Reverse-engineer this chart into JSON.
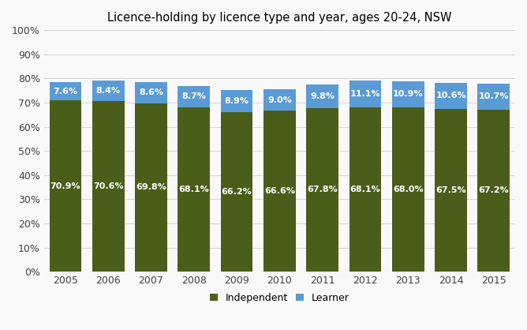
{
  "title": "Licence-holding by licence type and year, ages 20-24, NSW",
  "years": [
    2005,
    2006,
    2007,
    2008,
    2009,
    2010,
    2011,
    2012,
    2013,
    2014,
    2015
  ],
  "independent": [
    70.9,
    70.6,
    69.8,
    68.1,
    66.2,
    66.6,
    67.8,
    68.1,
    68.0,
    67.5,
    67.2
  ],
  "learner": [
    7.6,
    8.4,
    8.6,
    8.7,
    8.9,
    9.0,
    9.8,
    11.1,
    10.9,
    10.6,
    10.7
  ],
  "independent_color": "#4a5e1a",
  "learner_color": "#5b9bd5",
  "bar_width": 0.75,
  "ylim": [
    0,
    100
  ],
  "yticks": [
    0,
    10,
    20,
    30,
    40,
    50,
    60,
    70,
    80,
    90,
    100
  ],
  "ytick_labels": [
    "0%",
    "10%",
    "20%",
    "30%",
    "40%",
    "50%",
    "60%",
    "70%",
    "80%",
    "90%",
    "100%"
  ],
  "legend_labels": [
    "Independent",
    "Learner"
  ],
  "label_fontsize": 8.0,
  "title_fontsize": 10.5,
  "background_color": "#f9f9f9",
  "plot_bg_color": "#f9f9f9",
  "grid_color": "#d9d9d9",
  "text_color": "#ffffff"
}
